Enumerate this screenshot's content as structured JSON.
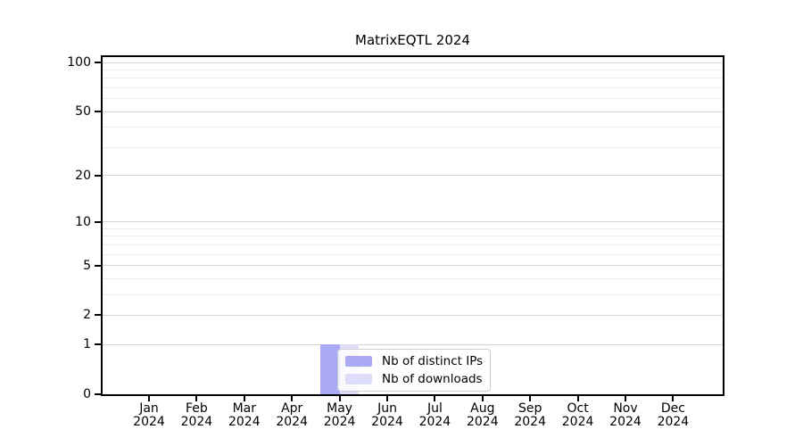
{
  "chart_data": {
    "type": "bar",
    "title": "MatrixEQTL 2024",
    "categories": [
      "Jan",
      "Feb",
      "Mar",
      "Apr",
      "May",
      "Jun",
      "Jul",
      "Aug",
      "Sep",
      "Oct",
      "Nov",
      "Dec"
    ],
    "year_label": "2024",
    "series": [
      {
        "name": "Nb of distinct IPs",
        "color": "#aaaaf6",
        "values": [
          0,
          0,
          0,
          0,
          1,
          0,
          0,
          0,
          0,
          0,
          0,
          0
        ]
      },
      {
        "name": "Nb of downloads",
        "color": "#dedefa",
        "values": [
          0,
          0,
          0,
          0,
          1,
          0,
          0,
          0,
          0,
          0,
          0,
          0
        ]
      }
    ],
    "scale": "log1p",
    "ylim": [
      0,
      111
    ],
    "yticks": [
      0,
      1,
      2,
      5,
      10,
      20,
      50,
      100
    ],
    "minor_yticks": [
      3,
      4,
      6,
      7,
      8,
      9,
      30,
      40,
      60,
      70,
      80,
      90
    ],
    "grid": true,
    "legend_position": "lower center",
    "colors": {
      "axis": "#000000",
      "grid_major": "#d4d4d4",
      "grid_minor": "#ececec",
      "background": "#ffffff",
      "legend_border": "#cccccc"
    }
  }
}
